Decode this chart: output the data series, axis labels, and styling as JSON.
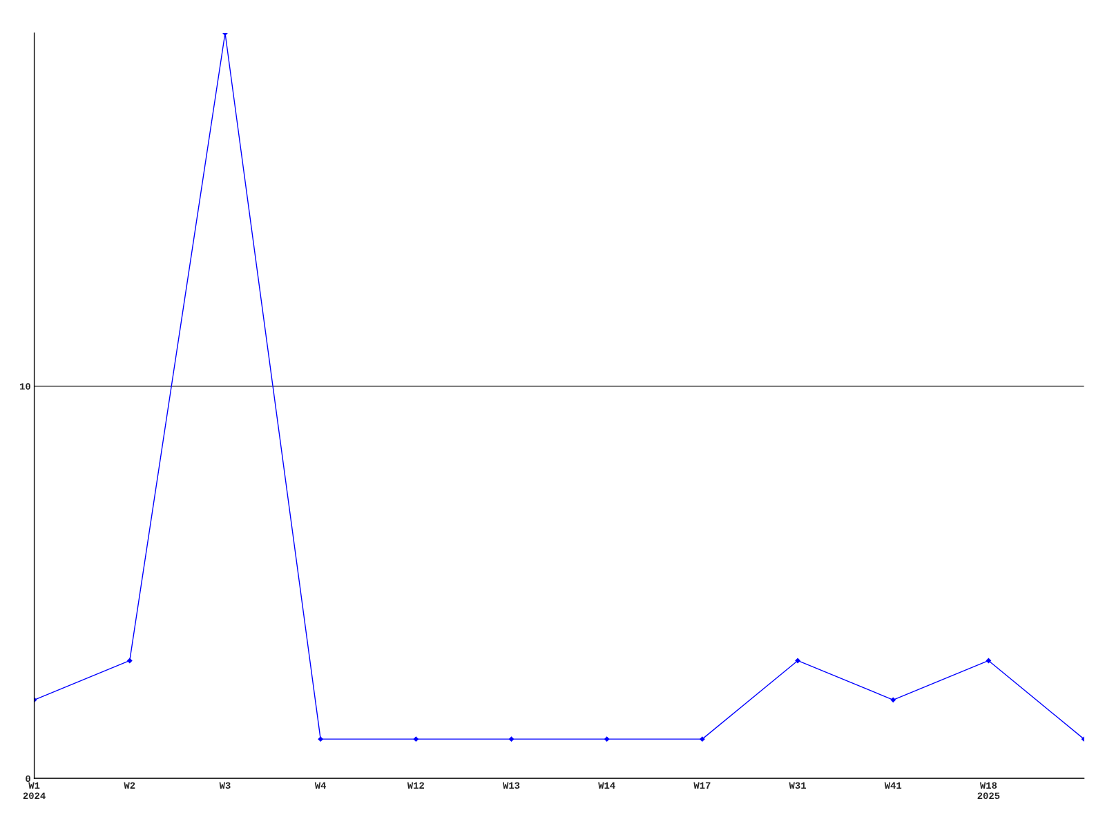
{
  "chart_data": {
    "type": "line",
    "categories": [
      "W1\n2024",
      "W2",
      "W3",
      "W4",
      "W12",
      "W13",
      "W14",
      "W17",
      "W31",
      "W41",
      "W18\n2025",
      null
    ],
    "series": [
      {
        "color": "#0000ff",
        "values": [
          2,
          3,
          19,
          1,
          1,
          1,
          1,
          1,
          3,
          2,
          3,
          1
        ]
      }
    ],
    "ylim": [
      0,
      19
    ],
    "yticks": [
      0,
      10
    ],
    "grid": "y",
    "marker": "diamond",
    "line_style": "solid"
  }
}
